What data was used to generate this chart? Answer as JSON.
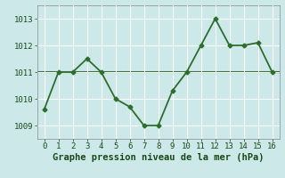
{
  "x": [
    0,
    1,
    2,
    3,
    4,
    5,
    6,
    7,
    8,
    9,
    10,
    11,
    12,
    13,
    14,
    15,
    16
  ],
  "y": [
    1009.6,
    1011.0,
    1011.0,
    1011.5,
    1011.0,
    1010.0,
    1009.7,
    1009.0,
    1009.0,
    1010.3,
    1011.0,
    1012.0,
    1013.0,
    1012.0,
    1012.0,
    1012.1,
    1011.0
  ],
  "hline_y": 1011.0,
  "line_color": "#2d6e2d",
  "hline_color": "#2d6e2d",
  "bg_color": "#cce8e8",
  "grid_color": "#ffffff",
  "xlabel": "Graphe pression niveau de la mer (hPa)",
  "ylim": [
    1008.5,
    1013.5
  ],
  "xlim": [
    -0.5,
    16.5
  ],
  "yticks": [
    1009,
    1010,
    1011,
    1012,
    1013
  ],
  "xticks": [
    0,
    1,
    2,
    3,
    4,
    5,
    6,
    7,
    8,
    9,
    10,
    11,
    12,
    13,
    14,
    15,
    16
  ],
  "marker": "D",
  "marker_size": 2.5,
  "line_width": 1.3,
  "xlabel_fontsize": 7.5,
  "tick_fontsize": 6.5,
  "xlabel_color": "#1a4a1a",
  "tick_color": "#1a4a1a"
}
